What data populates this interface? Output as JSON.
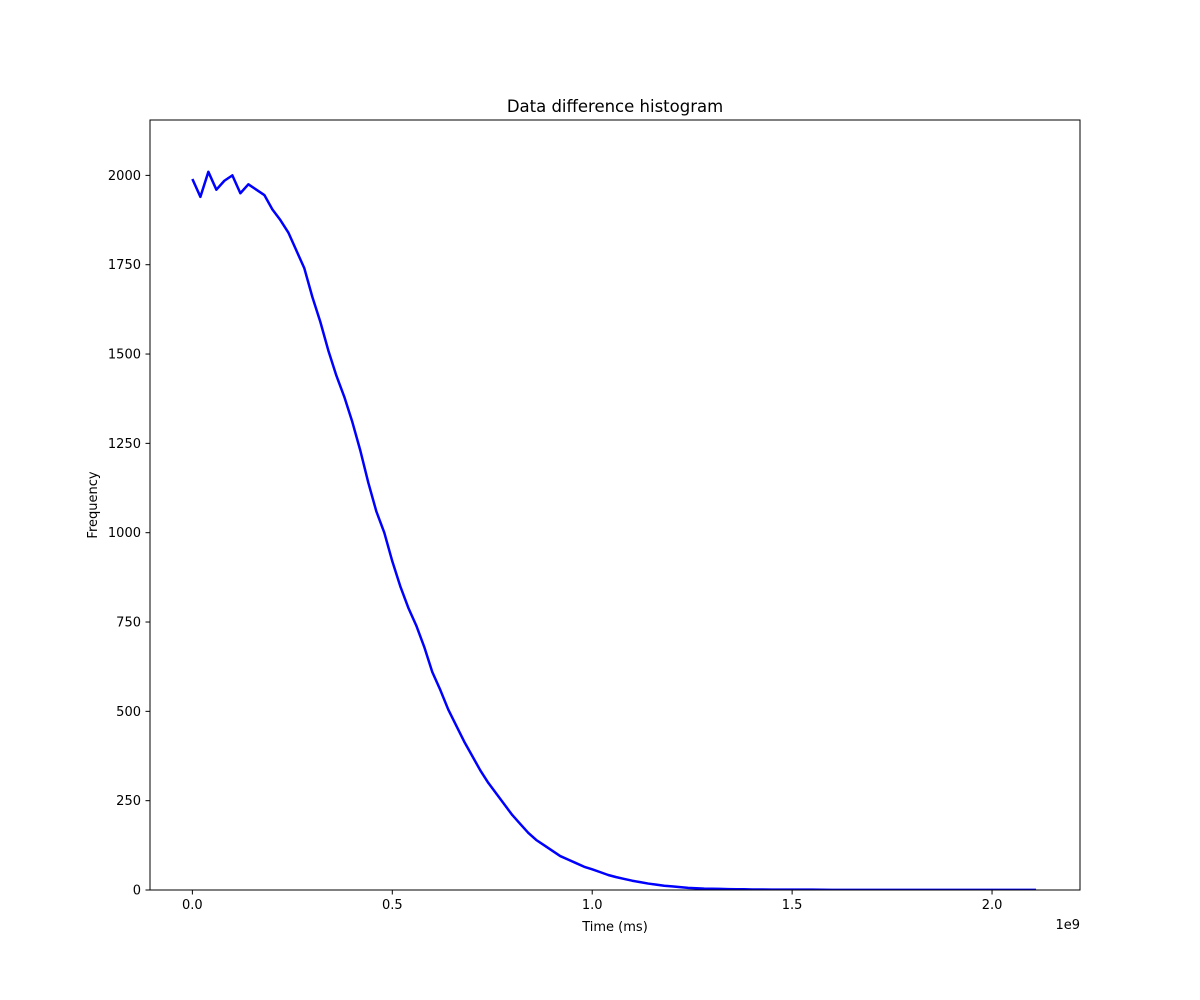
{
  "chart_data": {
    "type": "line",
    "title": "Data difference histogram",
    "xlabel": "Time (ms)",
    "ylabel": "Frequency",
    "x_offset_label": "1e9",
    "xlim": [
      -0.106,
      2.22
    ],
    "ylim": [
      0,
      2155
    ],
    "x_ticks": [
      0.0,
      0.5,
      1.0,
      1.5,
      2.0
    ],
    "x_tick_labels": [
      "0.0",
      "0.5",
      "1.0",
      "1.5",
      "2.0"
    ],
    "y_ticks": [
      0,
      250,
      500,
      750,
      1000,
      1250,
      1500,
      1750,
      2000
    ],
    "y_tick_labels": [
      "0",
      "250",
      "500",
      "750",
      "1000",
      "1250",
      "1500",
      "1750",
      "2000"
    ],
    "grid": false,
    "series": [
      {
        "name": "frequency",
        "color": "#0000ff",
        "x_unit_scale": 1000000000,
        "x": [
          0.0,
          0.02,
          0.04,
          0.06,
          0.08,
          0.1,
          0.12,
          0.14,
          0.16,
          0.18,
          0.2,
          0.22,
          0.24,
          0.26,
          0.28,
          0.3,
          0.32,
          0.34,
          0.36,
          0.38,
          0.4,
          0.42,
          0.44,
          0.46,
          0.48,
          0.5,
          0.52,
          0.54,
          0.56,
          0.58,
          0.6,
          0.62,
          0.64,
          0.66,
          0.68,
          0.7,
          0.72,
          0.74,
          0.76,
          0.78,
          0.8,
          0.82,
          0.84,
          0.86,
          0.88,
          0.9,
          0.92,
          0.94,
          0.96,
          0.98,
          1.0,
          1.02,
          1.04,
          1.06,
          1.08,
          1.1,
          1.12,
          1.14,
          1.16,
          1.18,
          1.2,
          1.22,
          1.24,
          1.26,
          1.28,
          1.3,
          1.32,
          1.34,
          1.36,
          1.38,
          1.4,
          1.45,
          1.5,
          1.55,
          1.6,
          1.7,
          1.8,
          1.9,
          2.0,
          2.11
        ],
        "values": [
          1990,
          1940,
          2010,
          1960,
          1985,
          2000,
          1950,
          1975,
          1960,
          1945,
          1905,
          1875,
          1840,
          1790,
          1740,
          1660,
          1590,
          1510,
          1440,
          1380,
          1310,
          1230,
          1140,
          1060,
          1000,
          920,
          850,
          790,
          740,
          680,
          610,
          560,
          505,
          460,
          415,
          375,
          335,
          300,
          270,
          240,
          210,
          185,
          160,
          140,
          125,
          110,
          95,
          85,
          75,
          65,
          58,
          50,
          42,
          36,
          31,
          26,
          22,
          18,
          15,
          12,
          10,
          8,
          6,
          5,
          4,
          3.5,
          3,
          2.5,
          2,
          2,
          1.5,
          1,
          1,
          1,
          0.5,
          0.5,
          0.5,
          0.5,
          0.5,
          0.5
        ]
      }
    ]
  }
}
